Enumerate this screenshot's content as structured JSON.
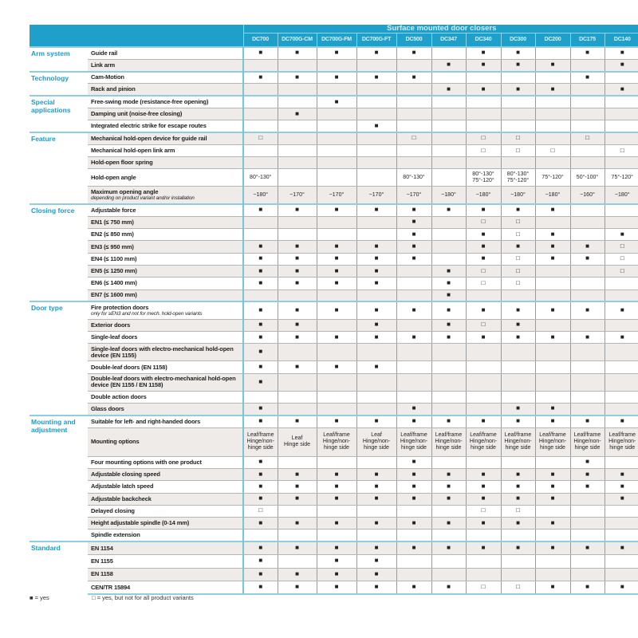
{
  "header": {
    "title": "Surface mounted door closers",
    "products": [
      "DC700",
      "DC700G-CM",
      "DC700G-FM",
      "DC700G-FT",
      "DC500",
      "DC347",
      "DC340",
      "DC300",
      "DC200",
      "DC175",
      "DC140"
    ]
  },
  "colors": {
    "header_bg": "#1ea0cb",
    "group_label": "#1a9ccc",
    "shaded_row": "#eeebe8"
  },
  "groups": [
    {
      "label": "Arm system",
      "rows": [
        {
          "label": "Guide rail",
          "values": [
            "■",
            "■",
            "■",
            "■",
            "■",
            "",
            "■",
            "■",
            "",
            "■",
            "■"
          ]
        },
        {
          "label": "Link arm",
          "values": [
            "",
            "",
            "",
            "",
            "",
            "■",
            "■",
            "■",
            "■",
            "",
            "■"
          ]
        }
      ]
    },
    {
      "label": "Technology",
      "rows": [
        {
          "label": "Cam-Motion",
          "values": [
            "■",
            "■",
            "■",
            "■",
            "■",
            "",
            "",
            "",
            "",
            "■",
            ""
          ]
        },
        {
          "label": "Rack and pinion",
          "values": [
            "",
            "",
            "",
            "",
            "",
            "■",
            "■",
            "■",
            "■",
            "",
            "■"
          ]
        }
      ]
    },
    {
      "label": "Special applications",
      "rows": [
        {
          "label": "Free-swing mode (resistance-free opening)",
          "values": [
            "",
            "",
            "■",
            "",
            "",
            "",
            "",
            "",
            "",
            "",
            ""
          ]
        },
        {
          "label": "Damping unit (noise-free closing)",
          "values": [
            "",
            "■",
            "",
            "",
            "",
            "",
            "",
            "",
            "",
            "",
            ""
          ]
        },
        {
          "label": "Integrated electric strike for escape routes",
          "values": [
            "",
            "",
            "",
            "■",
            "",
            "",
            "",
            "",
            "",
            "",
            ""
          ]
        }
      ]
    },
    {
      "label": "Feature",
      "rows": [
        {
          "label": "Mechanical hold-open device for guide rail",
          "values": [
            "□",
            "",
            "",
            "",
            "□",
            "",
            "□",
            "□",
            "",
            "□",
            ""
          ]
        },
        {
          "label": "Mechanical hold-open link arm",
          "values": [
            "",
            "",
            "",
            "",
            "",
            "",
            "□",
            "□",
            "□",
            "",
            "□"
          ]
        },
        {
          "label": "Hold-open floor spring",
          "values": [
            "",
            "",
            "",
            "",
            "",
            "",
            "",
            "",
            "",
            "",
            ""
          ]
        },
        {
          "label": "Hold-open angle",
          "tall": true,
          "values": [
            "80°-130°",
            "",
            "",
            "",
            "80°-130°",
            "",
            "80°-130°\n75°-120°",
            "80°-130°\n75°-120°",
            "75°-120°",
            "50°-100°",
            "75°-120°"
          ]
        },
        {
          "label": "Maximum opening angle",
          "note": "depending on product variant and/or installation",
          "tall": true,
          "values": [
            "~180°",
            "~170°",
            "~170°",
            "~170°",
            "~170°",
            "~180°",
            "~180°",
            "~180°",
            "~180°",
            "~160°",
            "~180°"
          ]
        }
      ]
    },
    {
      "label": "Closing force",
      "rows": [
        {
          "label": "Adjustable force",
          "values": [
            "■",
            "■",
            "■",
            "■",
            "■",
            "■",
            "■",
            "■",
            "■",
            "",
            ""
          ]
        },
        {
          "label": "EN1 (≤ 750 mm)",
          "values": [
            "",
            "",
            "",
            "",
            "■",
            "",
            "□",
            "□",
            "",
            "",
            ""
          ]
        },
        {
          "label": "EN2 (≤ 850 mm)",
          "values": [
            "",
            "",
            "",
            "",
            "■",
            "",
            "■",
            "□",
            "■",
            "",
            "■"
          ]
        },
        {
          "label": "EN3 (≤ 950 mm)",
          "values": [
            "■",
            "■",
            "■",
            "■",
            "■",
            "",
            "■",
            "■",
            "■",
            "■",
            "□"
          ]
        },
        {
          "label": "EN4 (≤ 1100 mm)",
          "values": [
            "■",
            "■",
            "■",
            "■",
            "■",
            "",
            "■",
            "□",
            "■",
            "■",
            "□"
          ]
        },
        {
          "label": "EN5 (≤ 1250 mm)",
          "values": [
            "■",
            "■",
            "■",
            "■",
            "",
            "■",
            "□",
            "□",
            "",
            "",
            "□"
          ]
        },
        {
          "label": "EN6 (≤ 1400 mm)",
          "values": [
            "■",
            "■",
            "■",
            "■",
            "",
            "■",
            "□",
            "□",
            "",
            "",
            ""
          ]
        },
        {
          "label": "EN7 (≤ 1600 mm)",
          "values": [
            "",
            "",
            "",
            "",
            "",
            "■",
            "",
            "",
            "",
            "",
            ""
          ]
        }
      ]
    },
    {
      "label": "Door type",
      "rows": [
        {
          "label": "Fire protection doors",
          "note": "only for ≥EN3 and not for mech. hold-open variants",
          "tall": true,
          "values": [
            "■",
            "■",
            "■",
            "■",
            "■",
            "■",
            "■",
            "■",
            "■",
            "■",
            "■"
          ]
        },
        {
          "label": "Exterior doors",
          "values": [
            "■",
            "■",
            "",
            "■",
            "",
            "■",
            "□",
            "■",
            "",
            "",
            ""
          ]
        },
        {
          "label": "Single-leaf doors",
          "values": [
            "■",
            "■",
            "■",
            "■",
            "■",
            "■",
            "■",
            "■",
            "■",
            "■",
            "■"
          ]
        },
        {
          "label": "Single-leaf doors with electro-mechanical hold-open device (EN 1155)",
          "tall": true,
          "values": [
            "■",
            "",
            "",
            "",
            "",
            "",
            "",
            "",
            "",
            "",
            ""
          ]
        },
        {
          "label": "Double-leaf doors (EN 1158)",
          "values": [
            "■",
            "■",
            "■",
            "■",
            "",
            "",
            "",
            "",
            "",
            "",
            ""
          ]
        },
        {
          "label": "Double-leaf doors with electro-mechanical hold-open device (EN 1155 / EN 1158)",
          "tall": true,
          "values": [
            "■",
            "",
            "",
            "",
            "",
            "",
            "",
            "",
            "",
            "",
            ""
          ]
        },
        {
          "label": "Double action doors",
          "values": [
            "",
            "",
            "",
            "",
            "",
            "",
            "",
            "",
            "",
            "",
            ""
          ]
        },
        {
          "label": "Glass doors",
          "values": [
            "■",
            "",
            "",
            "",
            "■",
            "",
            "",
            "■",
            "■",
            "",
            ""
          ]
        }
      ]
    },
    {
      "label": "Mounting and adjustment",
      "rows": [
        {
          "label": "Suitable for left- and right-handed doors",
          "values": [
            "■",
            "■",
            "■",
            "■",
            "■",
            "■",
            "■",
            "■",
            "■",
            "■",
            "■"
          ]
        },
        {
          "label": "Mounting options",
          "xtall": true,
          "values": [
            "Leaf/frame\nHinge/non-hinge side",
            "Leaf\nHinge side",
            "Leaf/frame\nHinge/non-hinge side",
            "Leaf\nHinge/non-hinge side",
            "Leaf/frame\nHinge/non-hinge side",
            "Leaf/frame\nHinge/non-hinge side",
            "Leaf/frame\nHinge/non-hinge side",
            "Leaf/frame\nHinge/non-hinge side",
            "Leaf/frame\nHinge/non-hinge side",
            "Leaf/frame\nHinge/non-hinge side",
            "Leaf/frame\nHinge/non-hinge side"
          ]
        },
        {
          "label": "Four mounting options with one product",
          "values": [
            "■",
            "",
            "",
            "",
            "■",
            "",
            "",
            "",
            "",
            "■",
            ""
          ]
        },
        {
          "label": "Adjustable closing speed",
          "values": [
            "■",
            "■",
            "■",
            "■",
            "■",
            "■",
            "■",
            "■",
            "■",
            "■",
            "■"
          ]
        },
        {
          "label": "Adjustable latch speed",
          "values": [
            "■",
            "■",
            "■",
            "■",
            "■",
            "■",
            "■",
            "■",
            "■",
            "■",
            "■"
          ]
        },
        {
          "label": "Adjustable backcheck",
          "values": [
            "■",
            "■",
            "■",
            "■",
            "■",
            "■",
            "■",
            "■",
            "■",
            "",
            "■"
          ]
        },
        {
          "label": "Delayed closing",
          "values": [
            "□",
            "",
            "",
            "",
            "",
            "",
            "□",
            "□",
            "",
            "",
            ""
          ]
        },
        {
          "label": "Height adjustable spindle (0-14 mm)",
          "values": [
            "■",
            "■",
            "■",
            "■",
            "■",
            "■",
            "■",
            "■",
            "■",
            "",
            ""
          ]
        },
        {
          "label": "Spindle extension",
          "values": [
            "",
            "",
            "",
            "",
            "",
            "",
            "",
            "",
            "",
            "",
            ""
          ]
        }
      ]
    },
    {
      "label": "Standard",
      "rows": [
        {
          "label": "EN 1154",
          "values": [
            "■",
            "■",
            "■",
            "■",
            "■",
            "■",
            "■",
            "■",
            "■",
            "■",
            "■"
          ]
        },
        {
          "label": "EN 1155",
          "values": [
            "■",
            "",
            "■",
            "■",
            "",
            "",
            "",
            "",
            "",
            "",
            ""
          ]
        },
        {
          "label": "EN 1158",
          "values": [
            "■",
            "■",
            "■",
            "■",
            "",
            "",
            "",
            "",
            "",
            "",
            ""
          ]
        },
        {
          "label": "CEN/TR 15894",
          "values": [
            "■",
            "■",
            "■",
            "■",
            "■",
            "■",
            "□",
            "□",
            "■",
            "■",
            "■"
          ]
        }
      ]
    }
  ],
  "legend": {
    "yes": "■ = yes",
    "partial": "□ = yes, but not for all product variants"
  }
}
